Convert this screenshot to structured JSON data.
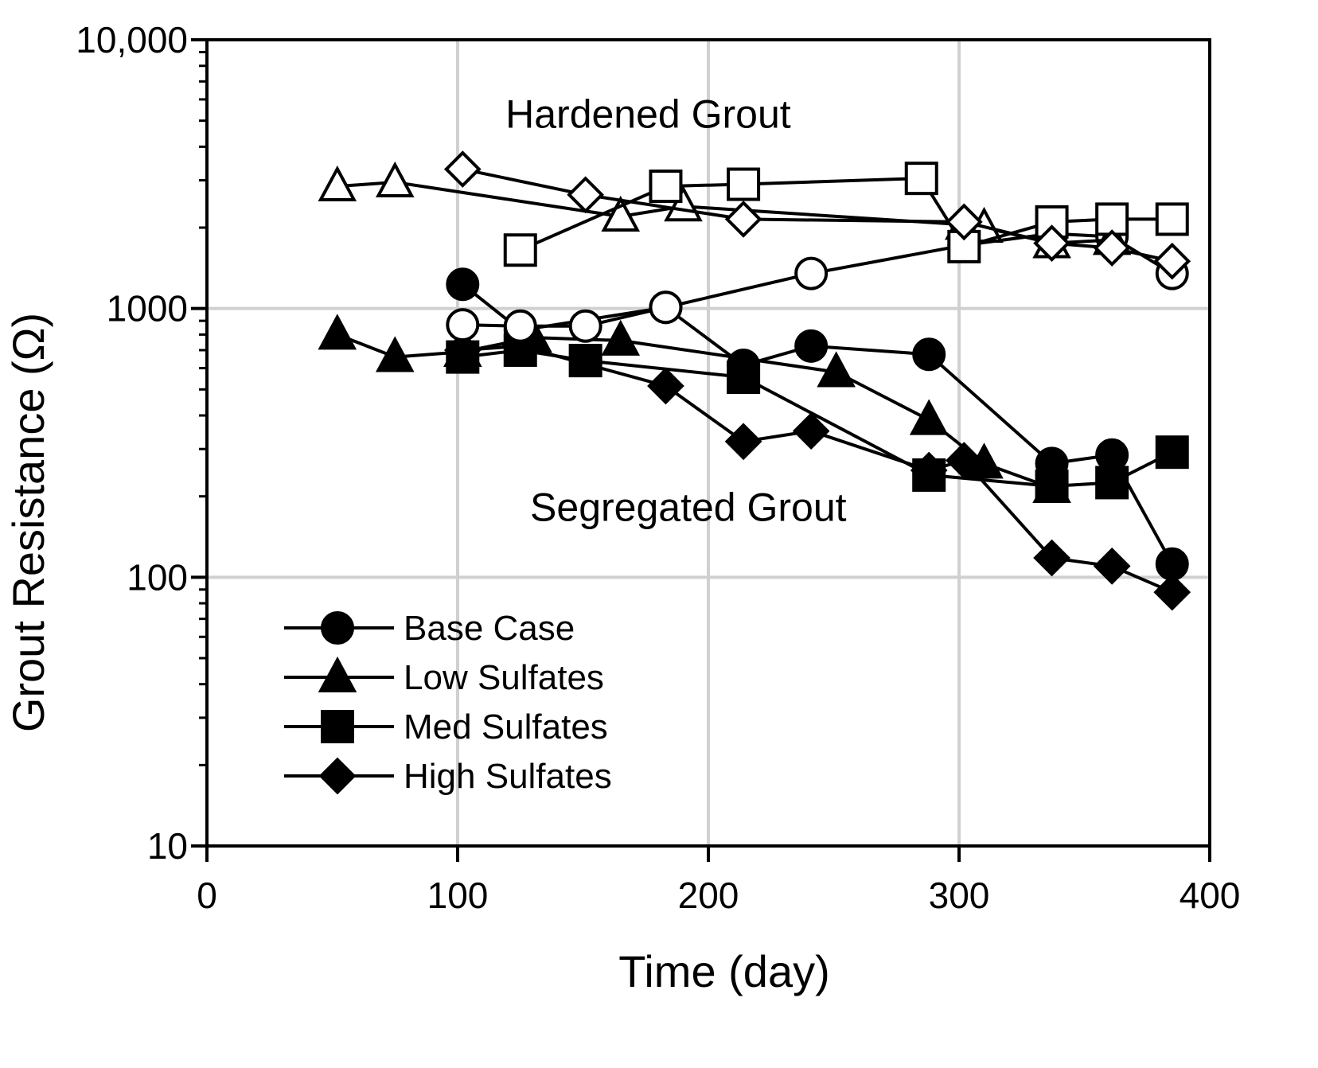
{
  "chart_data": {
    "type": "line",
    "yscale": "log",
    "xlabel": "Time (day)",
    "ylabel": "Grout Resistance (Ω)",
    "xlim": [
      0,
      400
    ],
    "ylim": [
      10,
      10000
    ],
    "xticks": [
      0,
      100,
      200,
      300,
      400
    ],
    "xtick_labels": [
      "0",
      "100",
      "200",
      "300",
      "400"
    ],
    "yticks": [
      10,
      100,
      1000,
      10000
    ],
    "ytick_labels": [
      "10",
      "100",
      "1000",
      "10,000"
    ],
    "grid": true,
    "legend_position": "bottom-left",
    "annotations": [
      {
        "id": "hardened",
        "text": "Hardened Grout",
        "x": 176,
        "y": 4700
      },
      {
        "id": "segregated",
        "text": "Segregated Grout",
        "x": 192,
        "y": 162
      }
    ],
    "series": [
      {
        "name": "Base Case",
        "group": "segregated",
        "marker": "circle",
        "filled": true,
        "legend": true,
        "x": [
          102,
          125,
          183,
          214,
          241,
          288,
          337,
          361,
          385
        ],
        "y": [
          1230,
          830,
          1010,
          615,
          725,
          675,
          265,
          285,
          112
        ]
      },
      {
        "name": "Low Sulfates",
        "group": "segregated",
        "marker": "triangle",
        "filled": true,
        "legend": true,
        "x": [
          52,
          75,
          102,
          130,
          165,
          251,
          288,
          310,
          337
        ],
        "y": [
          800,
          660,
          690,
          780,
          760,
          580,
          385,
          265,
          215
        ]
      },
      {
        "name": "Med Sulfates",
        "group": "segregated",
        "marker": "square",
        "filled": true,
        "legend": true,
        "x": [
          102,
          125,
          151,
          214,
          288,
          337,
          361,
          385
        ],
        "y": [
          660,
          700,
          640,
          555,
          240,
          218,
          225,
          292
        ]
      },
      {
        "name": "High Sulfates",
        "group": "segregated",
        "marker": "diamond",
        "filled": true,
        "legend": true,
        "x": [
          102,
          125,
          183,
          214,
          241,
          288,
          302,
          337,
          361,
          385
        ],
        "y": [
          700,
          725,
          515,
          320,
          350,
          250,
          272,
          118,
          110,
          88
        ]
      },
      {
        "name": "Base Case (hardened)",
        "group": "hardened",
        "marker": "circle",
        "filled": false,
        "legend": false,
        "x": [
          102,
          125,
          151,
          183,
          241,
          302,
          337,
          361,
          385
        ],
        "y": [
          870,
          860,
          860,
          1010,
          1350,
          1720,
          1900,
          1850,
          1350
        ]
      },
      {
        "name": "Low Sulfates (hardened)",
        "group": "hardened",
        "marker": "triangle",
        "filled": false,
        "legend": false,
        "x": [
          52,
          75,
          165,
          190,
          302,
          310,
          337,
          361
        ],
        "y": [
          2850,
          2950,
          2200,
          2400,
          2050,
          2000,
          1750,
          1800
        ]
      },
      {
        "name": "Med Sulfates (hardened)",
        "group": "hardened",
        "marker": "square",
        "filled": false,
        "legend": false,
        "x": [
          125,
          183,
          214,
          285,
          302,
          337,
          361,
          385
        ],
        "y": [
          1650,
          2850,
          2900,
          3050,
          1700,
          2100,
          2150,
          2150
        ]
      },
      {
        "name": "High Sulfates (hardened)",
        "group": "hardened",
        "marker": "diamond",
        "filled": false,
        "legend": false,
        "x": [
          102,
          151,
          214,
          302,
          337,
          361,
          385
        ],
        "y": [
          3300,
          2650,
          2150,
          2100,
          1750,
          1680,
          1500
        ]
      }
    ]
  }
}
